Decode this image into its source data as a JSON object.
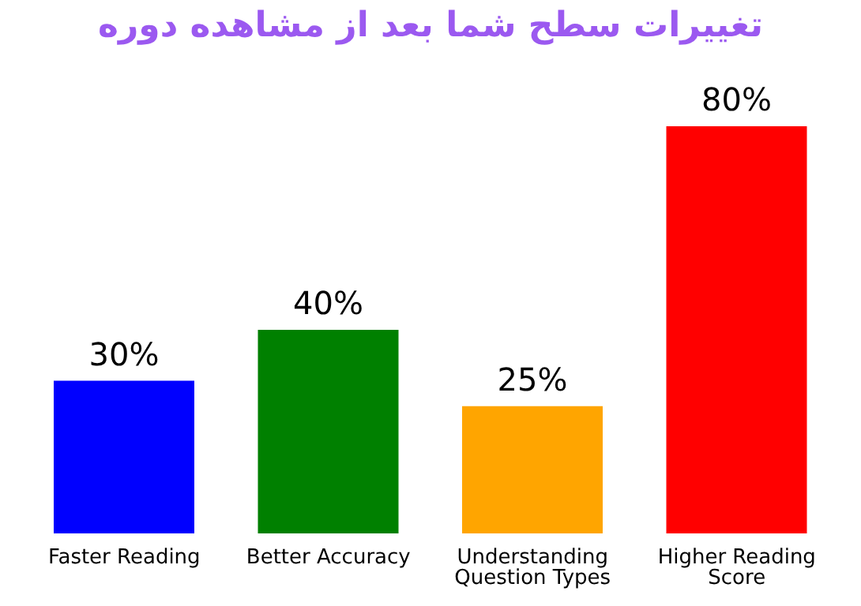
{
  "chart_data": {
    "type": "bar",
    "title": "تغییرات سطح شما بعد از مشاهده دوره",
    "categories": [
      "Faster Reading",
      "Better Accuracy",
      "Understanding Question Types",
      "Higher Reading Score"
    ],
    "values": [
      30,
      40,
      25,
      80
    ],
    "colors": [
      "#0000ff",
      "#008000",
      "#ffa500",
      "#ff0000"
    ],
    "value_labels": [
      "30%",
      "40%",
      "25%",
      "80%"
    ],
    "grid": false,
    "legend": false
  }
}
